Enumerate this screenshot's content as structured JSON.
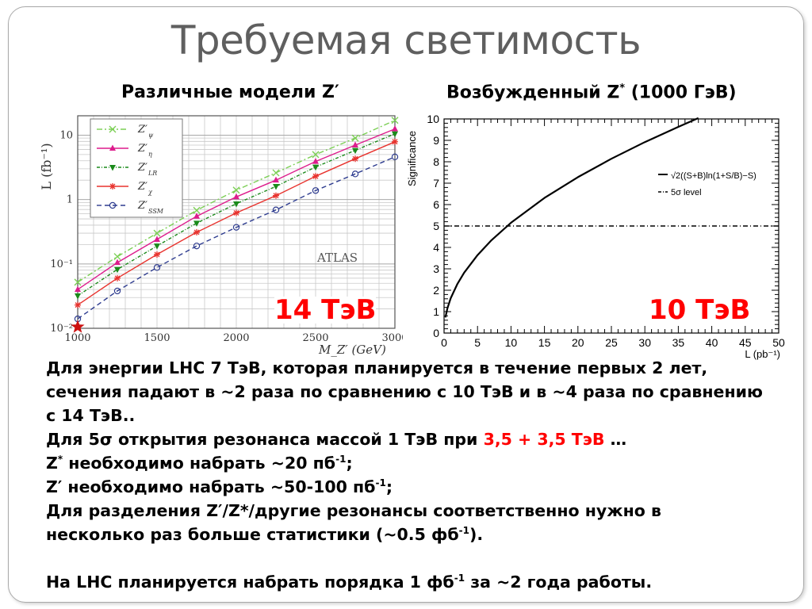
{
  "slide": {
    "title": "Требуемая светимость",
    "subtitle_left": "Различные модели Z′",
    "subtitle_right_main": "Возбужденный Z",
    "subtitle_right_sup": "*",
    "subtitle_right_tail": " (1000 ГэВ)",
    "energy_left": "14  ТэВ",
    "energy_right": "10  ТэВ"
  },
  "text": {
    "p1": "Для энергии LHC 7 ТэВ, которая планируется в течение первых 2 лет, сечения падают в ~2 раза по сравнению с 10 ТэВ и в ~4 раза по сравнению с 14 ТэВ..",
    "p2_start": "Для 5σ открытия резонанса массой 1 ТэВ при ",
    "p2_red": "3,5 + 3,5 ТэВ",
    "p2_end": " …",
    "p3_a": "Z",
    "p3_sup1": "*",
    "p3_b": " необходимо набрать ~20 пб",
    "p3_sup2": "-1",
    "p3_c": ";",
    "p4_a": "Z′ необходимо набрать ~50-100 пб",
    "p4_sup": "-1",
    "p4_b": ";",
    "p5_a": "Для разделения Z′/Z*/другие резонансы соответственно нужно в несколько раз больше статистики (~0.5 фб",
    "p5_sup": "-1",
    "p5_b": ").",
    "p6_a": "На LHC планируется набрать порядка 1 фб",
    "p6_sup": "-1",
    "p6_b": " за ~2 года работы."
  },
  "chart_data": [
    {
      "type": "line",
      "xlabel": "M_Z′ (GeV)",
      "ylabel": "L (fb⁻¹)",
      "x_ticks": [
        1000,
        1500,
        2000,
        2500,
        3000
      ],
      "y_ticks": [
        "10⁻²",
        "10⁻¹",
        "1",
        "10"
      ],
      "xlim": [
        1000,
        3000
      ],
      "ylim": [
        0.01,
        20
      ],
      "yscale": "log",
      "grid": true,
      "legend_position": "top-left",
      "annotation": "ATLAS",
      "x": [
        1000,
        1250,
        1500,
        1750,
        2000,
        2250,
        2500,
        2750,
        3000
      ],
      "series": [
        {
          "name": "Z′ψ",
          "sub": "ψ",
          "color": "#7ccf55",
          "dash": "7,3,2,3",
          "marker": "x",
          "values": [
            0.052,
            0.13,
            0.3,
            0.68,
            1.4,
            2.6,
            5.0,
            9.0,
            17.0
          ]
        },
        {
          "name": "Z′η",
          "sub": "η",
          "color": "#dd1c8c",
          "dash": "",
          "marker": "triangle-up",
          "values": [
            0.04,
            0.105,
            0.24,
            0.55,
            1.1,
            2.0,
            3.9,
            7.0,
            12.5
          ]
        },
        {
          "name": "Z′LR",
          "sub": "LR",
          "color": "#1a8a1a",
          "dash": "4,2,1,2",
          "marker": "triangle-down",
          "values": [
            0.032,
            0.082,
            0.19,
            0.43,
            0.86,
            1.6,
            3.2,
            5.8,
            10.5
          ]
        },
        {
          "name": "Z′χ",
          "sub": "χ",
          "color": "#e8332e",
          "dash": "",
          "marker": "star",
          "values": [
            0.023,
            0.06,
            0.14,
            0.31,
            0.62,
            1.15,
            2.3,
            4.3,
            7.9
          ]
        },
        {
          "name": "Z′SSM",
          "sub": "SSM",
          "color": "#2e3c8f",
          "dash": "6,4",
          "marker": "circle",
          "values": [
            0.014,
            0.038,
            0.088,
            0.19,
            0.37,
            0.69,
            1.38,
            2.5,
            4.6
          ]
        }
      ],
      "special_point": {
        "x": 1000,
        "y": 0.0105,
        "marker": "star",
        "color": "#cc1111"
      }
    },
    {
      "type": "line",
      "xlabel": "L (pb⁻¹)",
      "ylabel": "Significance",
      "xlim": [
        0,
        50
      ],
      "ylim": [
        0,
        10
      ],
      "x_ticks": [
        0,
        5,
        10,
        15,
        20,
        25,
        30,
        35,
        40,
        45,
        50
      ],
      "y_ticks": [
        0,
        1,
        2,
        3,
        4,
        5,
        6,
        7,
        8,
        9,
        10
      ],
      "grid": false,
      "legend_position": "top-right",
      "series": [
        {
          "name": "√2((S+B)ln(1+S/B)−S)",
          "color": "#000000",
          "dash": "",
          "x": [
            0.2,
            0.5,
            1,
            2,
            3,
            5,
            7,
            10,
            15,
            20,
            25,
            30,
            35,
            38
          ],
          "values": [
            0.73,
            1.15,
            1.63,
            2.3,
            2.82,
            3.64,
            4.31,
            5.15,
            6.31,
            7.28,
            8.14,
            8.92,
            9.63,
            10.04
          ]
        },
        {
          "name": "5σ level",
          "color": "#000000",
          "dash": "6,3,1,3",
          "x": [
            0,
            50
          ],
          "values": [
            5,
            5
          ]
        }
      ]
    }
  ]
}
